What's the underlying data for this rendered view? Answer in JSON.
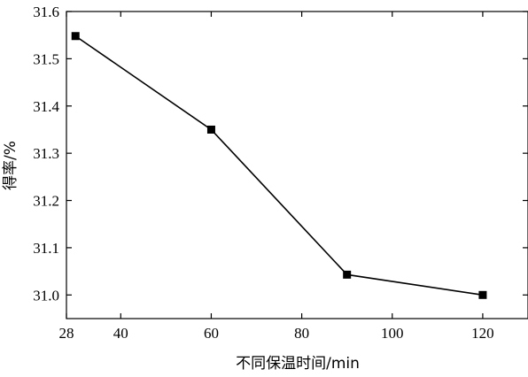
{
  "chart_data": {
    "type": "line",
    "xlabel": "不同保温时间/min",
    "ylabel": "得率/%",
    "xlim": [
      28,
      130
    ],
    "ylim": [
      30.95,
      31.6
    ],
    "xticks": [
      28,
      40,
      60,
      80,
      100,
      120
    ],
    "xtick_labels": [
      "28",
      "40",
      "60",
      "80",
      "100",
      "120"
    ],
    "yticks": [
      31.0,
      31.1,
      31.2,
      31.3,
      31.4,
      31.5,
      31.6
    ],
    "ytick_labels": [
      "31.0",
      "31.1",
      "31.2",
      "31.3",
      "31.4",
      "31.5",
      "31.6"
    ],
    "marker": "square",
    "series": [
      {
        "x": [
          30,
          60,
          90,
          120
        ],
        "y": [
          31.548,
          31.35,
          31.043,
          31.0
        ]
      }
    ],
    "grid": false,
    "legend": false
  }
}
